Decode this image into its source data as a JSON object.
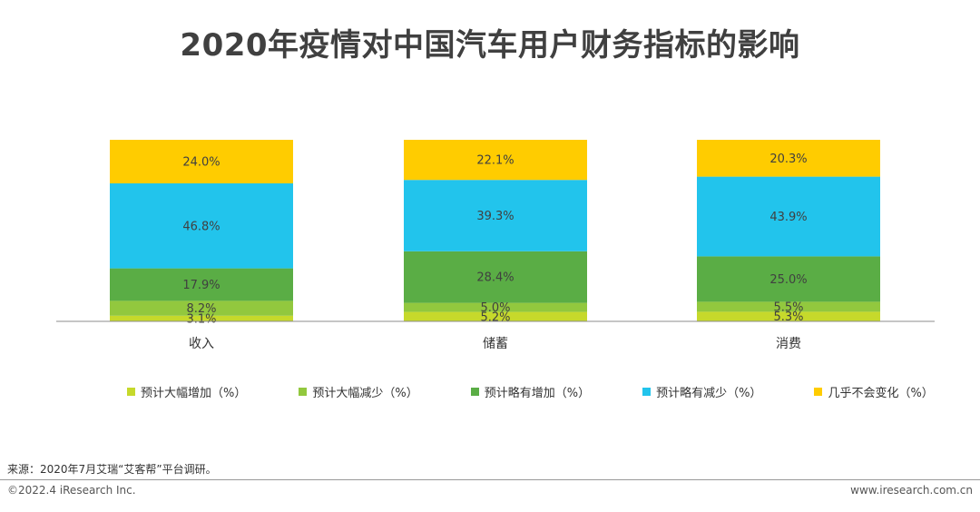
{
  "page": {
    "title": "2020年疫情对中国汽车用户财务指标的影响",
    "source": "来源：2020年7月艾瑞“艾客帮”平台调研。",
    "copyright": "©2022.4 iResearch Inc.",
    "url": "www.iresearch.com.cn"
  },
  "chart_data": {
    "type": "bar",
    "stacked": true,
    "categories": [
      "收入",
      "储蓄",
      "消费"
    ],
    "series": [
      {
        "name": "预计大幅增加（%）",
        "color": "#c6d92b",
        "values": [
          3.1,
          5.2,
          5.3
        ]
      },
      {
        "name": "预计大幅减少（%）",
        "color": "#92c83e",
        "values": [
          8.2,
          5.0,
          5.5
        ]
      },
      {
        "name": "预计略有增加（%）",
        "color": "#5aad45",
        "values": [
          17.9,
          28.4,
          25.0
        ]
      },
      {
        "name": "预计略有减少（%）",
        "color": "#22c4ec",
        "values": [
          46.8,
          39.3,
          43.9
        ]
      },
      {
        "name": "几乎不会变化（%）",
        "color": "#ffcc00",
        "values": [
          24.0,
          22.1,
          20.3
        ]
      }
    ],
    "data_labels": [
      [
        "3.1%",
        "5.2%",
        "5.3%"
      ],
      [
        "8.2%",
        "5.0%",
        "5.5%"
      ],
      [
        "17.9%",
        "28.4%",
        "25.0%"
      ],
      [
        "46.8%",
        "39.3%",
        "43.9%"
      ],
      [
        "24.0%",
        "22.1%",
        "20.3%"
      ]
    ],
    "ylim": [
      0,
      100
    ],
    "grid": false,
    "legend_position": "bottom"
  }
}
